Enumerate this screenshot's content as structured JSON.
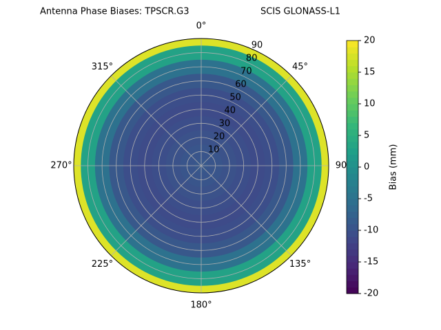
{
  "chart_data": {
    "type": "polar-contour",
    "title": "Antenna Phase Biases: TPSCR.G3",
    "subtitle": "SCIS GLONASS-L1",
    "radii": [
      0,
      10,
      20,
      30,
      40,
      50,
      60,
      70,
      80,
      90
    ],
    "values": [
      -9,
      -9.5,
      -10,
      -10.5,
      -11,
      -10.5,
      -9,
      -5,
      3,
      18
    ],
    "rlim": [
      0,
      90
    ],
    "rticks": [
      10,
      20,
      30,
      40,
      50,
      60,
      70,
      80,
      90
    ],
    "thetaticks": [
      {
        "value": 0,
        "label": "0°"
      },
      {
        "value": 45,
        "label": "45°"
      },
      {
        "value": 90,
        "label": "90"
      },
      {
        "value": 135,
        "label": "135°"
      },
      {
        "value": 180,
        "label": "180°"
      },
      {
        "value": 225,
        "label": "225°"
      },
      {
        "value": 270,
        "label": "270°"
      },
      {
        "value": 315,
        "label": "315°"
      }
    ],
    "colormap": "viridis",
    "clim": [
      -20,
      20
    ],
    "cticks": [
      -20,
      -15,
      -10,
      -5,
      0,
      5,
      10,
      15,
      20
    ],
    "colorbar_label": "Bias (mm)",
    "grid": true
  }
}
